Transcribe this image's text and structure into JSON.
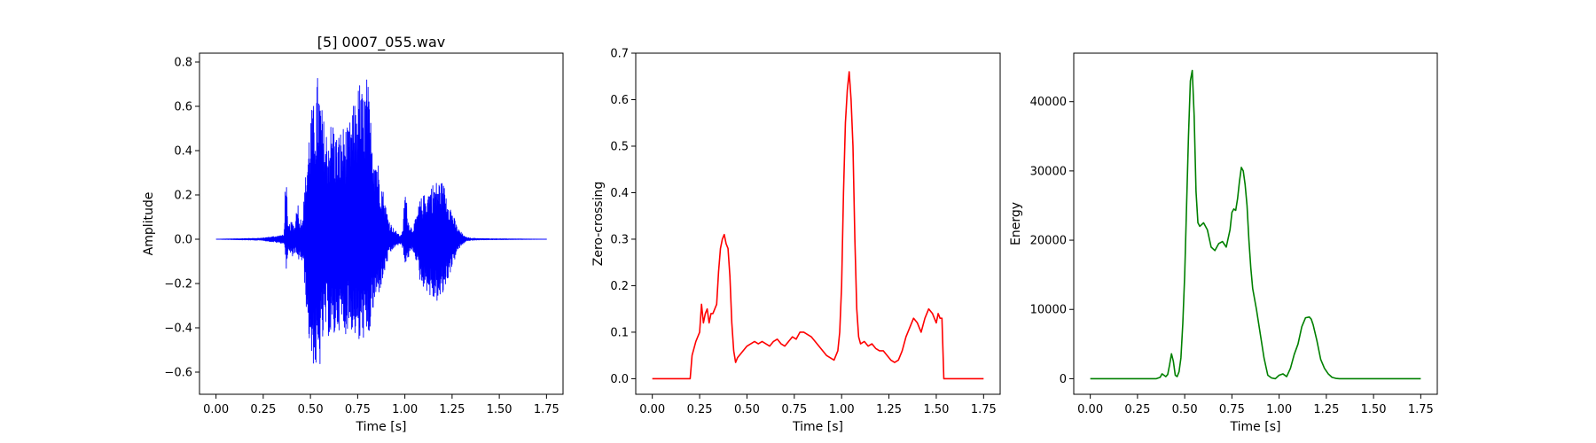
{
  "figure": {
    "background": "#ffffff"
  },
  "chart_data": [
    {
      "type": "line",
      "title": "[5] 0007_055.wav",
      "xlabel": "Time [s]",
      "ylabel": "Amplitude",
      "xlim": [
        -0.0875,
        1.8375
      ],
      "ylim": [
        -0.7,
        0.84
      ],
      "xticks": [
        0.0,
        0.25,
        0.5,
        0.75,
        1.0,
        1.25,
        1.5,
        1.75
      ],
      "xticklabels": [
        "0.00",
        "0.25",
        "0.50",
        "0.75",
        "1.00",
        "1.25",
        "1.50",
        "1.75"
      ],
      "yticks": [
        -0.6,
        -0.4,
        -0.2,
        0.0,
        0.2,
        0.4,
        0.6,
        0.8
      ],
      "yticklabels": [
        "−0.6",
        "−0.4",
        "−0.2",
        "0.0",
        "0.2",
        "0.4",
        "0.6",
        "0.8"
      ],
      "grid": false,
      "series": [
        {
          "color": "#0000ff",
          "style": "waveform",
          "envelope": {
            "t": [
              0.0,
              0.24,
              0.28,
              0.36,
              0.37,
              0.38,
              0.4,
              0.42,
              0.43,
              0.44,
              0.46,
              0.48,
              0.5,
              0.52,
              0.54,
              0.56,
              0.58,
              0.6,
              0.62,
              0.64,
              0.66,
              0.68,
              0.7,
              0.72,
              0.74,
              0.76,
              0.78,
              0.8,
              0.82,
              0.84,
              0.86,
              0.88,
              0.9,
              0.92,
              0.94,
              0.96,
              0.97,
              0.98,
              0.99,
              1.0,
              1.02,
              1.04,
              1.06,
              1.08,
              1.1,
              1.12,
              1.14,
              1.16,
              1.18,
              1.2,
              1.22,
              1.24,
              1.26,
              1.28,
              1.3,
              1.32,
              1.35,
              1.4,
              1.5,
              1.75
            ],
            "max": [
              0.0,
              0.005,
              0.01,
              0.02,
              0.36,
              0.06,
              0.08,
              0.06,
              0.23,
              0.08,
              0.12,
              0.36,
              0.58,
              0.62,
              0.76,
              0.6,
              0.5,
              0.52,
              0.55,
              0.47,
              0.5,
              0.52,
              0.5,
              0.58,
              0.65,
              0.72,
              0.66,
              0.75,
              0.55,
              0.45,
              0.35,
              0.25,
              0.15,
              0.08,
              0.05,
              0.03,
              0.02,
              0.02,
              0.04,
              0.25,
              0.08,
              0.05,
              0.1,
              0.18,
              0.2,
              0.22,
              0.25,
              0.26,
              0.27,
              0.26,
              0.22,
              0.16,
              0.1,
              0.05,
              0.03,
              0.01,
              0.005,
              0.003,
              0.002,
              0.0
            ],
            "min": [
              0.0,
              -0.005,
              -0.01,
              -0.02,
              -0.14,
              -0.06,
              -0.08,
              -0.06,
              -0.12,
              -0.08,
              -0.12,
              -0.35,
              -0.55,
              -0.58,
              -0.66,
              -0.5,
              -0.42,
              -0.45,
              -0.48,
              -0.4,
              -0.42,
              -0.44,
              -0.4,
              -0.42,
              -0.45,
              -0.5,
              -0.45,
              -0.52,
              -0.38,
              -0.3,
              -0.25,
              -0.2,
              -0.12,
              -0.07,
              -0.04,
              -0.03,
              -0.02,
              -0.03,
              -0.05,
              -0.12,
              -0.08,
              -0.05,
              -0.1,
              -0.2,
              -0.22,
              -0.24,
              -0.28,
              -0.28,
              -0.29,
              -0.26,
              -0.2,
              -0.15,
              -0.1,
              -0.05,
              -0.03,
              -0.01,
              -0.005,
              -0.003,
              -0.002,
              0.0
            ]
          }
        }
      ]
    },
    {
      "type": "line",
      "title": "",
      "xlabel": "Time [s]",
      "ylabel": "Zero-crossing",
      "xlim": [
        -0.0875,
        1.8375
      ],
      "ylim": [
        -0.0335,
        0.7
      ],
      "xticks": [
        0.0,
        0.25,
        0.5,
        0.75,
        1.0,
        1.25,
        1.5,
        1.75
      ],
      "xticklabels": [
        "0.00",
        "0.25",
        "0.50",
        "0.75",
        "1.00",
        "1.25",
        "1.50",
        "1.75"
      ],
      "yticks": [
        0.0,
        0.1,
        0.2,
        0.3,
        0.4,
        0.5,
        0.6,
        0.7
      ],
      "yticklabels": [
        "0.0",
        "0.1",
        "0.2",
        "0.3",
        "0.4",
        "0.5",
        "0.6",
        "0.7"
      ],
      "grid": false,
      "series": [
        {
          "color": "#ff0000",
          "style": "line",
          "x": [
            0.0,
            0.2,
            0.21,
            0.23,
            0.25,
            0.26,
            0.27,
            0.28,
            0.29,
            0.3,
            0.31,
            0.32,
            0.33,
            0.34,
            0.35,
            0.36,
            0.37,
            0.38,
            0.39,
            0.4,
            0.41,
            0.42,
            0.43,
            0.44,
            0.45,
            0.46,
            0.48,
            0.5,
            0.52,
            0.54,
            0.56,
            0.58,
            0.6,
            0.62,
            0.64,
            0.66,
            0.68,
            0.7,
            0.72,
            0.74,
            0.76,
            0.78,
            0.8,
            0.82,
            0.84,
            0.86,
            0.88,
            0.9,
            0.92,
            0.94,
            0.96,
            0.98,
            0.99,
            1.0,
            1.01,
            1.02,
            1.03,
            1.04,
            1.05,
            1.06,
            1.07,
            1.08,
            1.09,
            1.1,
            1.12,
            1.14,
            1.16,
            1.18,
            1.2,
            1.22,
            1.24,
            1.26,
            1.28,
            1.3,
            1.32,
            1.34,
            1.36,
            1.38,
            1.4,
            1.42,
            1.44,
            1.46,
            1.48,
            1.5,
            1.51,
            1.52,
            1.53,
            1.54,
            1.75
          ],
          "y": [
            0.0,
            0.0,
            0.05,
            0.08,
            0.1,
            0.16,
            0.12,
            0.14,
            0.15,
            0.12,
            0.14,
            0.14,
            0.15,
            0.16,
            0.23,
            0.28,
            0.3,
            0.31,
            0.29,
            0.28,
            0.22,
            0.12,
            0.06,
            0.035,
            0.045,
            0.05,
            0.06,
            0.07,
            0.075,
            0.08,
            0.075,
            0.08,
            0.075,
            0.07,
            0.08,
            0.085,
            0.075,
            0.07,
            0.08,
            0.09,
            0.085,
            0.1,
            0.1,
            0.095,
            0.09,
            0.08,
            0.07,
            0.06,
            0.05,
            0.045,
            0.04,
            0.06,
            0.1,
            0.2,
            0.4,
            0.55,
            0.62,
            0.66,
            0.6,
            0.5,
            0.3,
            0.15,
            0.09,
            0.075,
            0.08,
            0.07,
            0.075,
            0.065,
            0.06,
            0.06,
            0.05,
            0.04,
            0.035,
            0.04,
            0.06,
            0.09,
            0.11,
            0.13,
            0.12,
            0.1,
            0.13,
            0.15,
            0.14,
            0.12,
            0.14,
            0.13,
            0.13,
            0.0,
            0.0
          ]
        }
      ]
    },
    {
      "type": "line",
      "title": "",
      "xlabel": "Time [s]",
      "ylabel": "Energy",
      "xlim": [
        -0.0875,
        1.8375
      ],
      "ylim": [
        -2250,
        47000
      ],
      "xticks": [
        0.0,
        0.25,
        0.5,
        0.75,
        1.0,
        1.25,
        1.5,
        1.75
      ],
      "xticklabels": [
        "0.00",
        "0.25",
        "0.50",
        "0.75",
        "1.00",
        "1.25",
        "1.50",
        "1.75"
      ],
      "yticks": [
        0,
        10000,
        20000,
        30000,
        40000
      ],
      "yticklabels": [
        "0",
        "10000",
        "20000",
        "30000",
        "40000"
      ],
      "grid": false,
      "series": [
        {
          "color": "#008000",
          "style": "line",
          "x": [
            0.0,
            0.35,
            0.37,
            0.38,
            0.39,
            0.4,
            0.41,
            0.42,
            0.43,
            0.44,
            0.45,
            0.46,
            0.47,
            0.48,
            0.49,
            0.5,
            0.51,
            0.52,
            0.53,
            0.54,
            0.55,
            0.56,
            0.57,
            0.58,
            0.6,
            0.62,
            0.64,
            0.66,
            0.68,
            0.7,
            0.72,
            0.74,
            0.75,
            0.76,
            0.77,
            0.78,
            0.79,
            0.8,
            0.81,
            0.82,
            0.83,
            0.84,
            0.85,
            0.86,
            0.88,
            0.9,
            0.92,
            0.94,
            0.96,
            0.98,
            1.0,
            1.02,
            1.04,
            1.06,
            1.08,
            1.1,
            1.12,
            1.14,
            1.16,
            1.17,
            1.18,
            1.2,
            1.22,
            1.24,
            1.26,
            1.28,
            1.3,
            1.32,
            1.75
          ],
          "y": [
            0,
            0,
            200,
            700,
            500,
            300,
            600,
            2000,
            3600,
            2500,
            500,
            300,
            1000,
            3000,
            8000,
            15000,
            25000,
            35000,
            43000,
            44500,
            38000,
            27000,
            22500,
            22000,
            22500,
            21500,
            19000,
            18500,
            19500,
            19800,
            19000,
            21500,
            24000,
            24500,
            24300,
            26000,
            28500,
            30500,
            30000,
            28000,
            25000,
            20000,
            16000,
            13000,
            10000,
            6500,
            3000,
            500,
            100,
            0,
            500,
            700,
            300,
            1500,
            3500,
            5000,
            7500,
            8800,
            8900,
            8600,
            7800,
            5500,
            2800,
            1500,
            700,
            200,
            50,
            0,
            0
          ]
        }
      ]
    }
  ]
}
